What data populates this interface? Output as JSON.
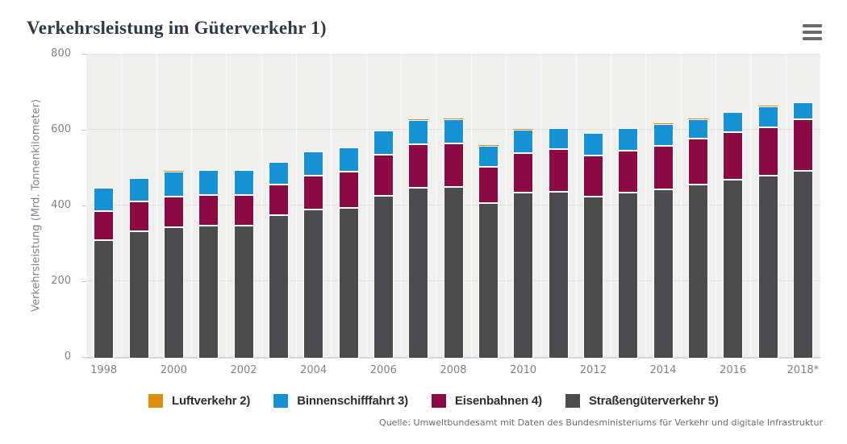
{
  "page": {
    "menu_icon": "hamburger-menu"
  },
  "colors": {
    "plot_background": "#f0f1ef",
    "gridline": "#e2e3e1",
    "baseline": "#c9d8e2",
    "axis_text": "#7e848c",
    "title_text": "#2e3a45",
    "legend_text": "#2d2d35",
    "source_text": "#6d6d6d",
    "menu_icon": "#6b6b6b"
  },
  "chart_data": {
    "type": "bar",
    "stacked": true,
    "title": "Verkehrsleistung im Güterverkehr 1)",
    "ylabel": "Verkehrsleistung (Mrd. Tonnenkilometer)",
    "xlabel": "",
    "ylim": [
      0,
      800
    ],
    "ytick_interval": 200,
    "yticks": [
      0,
      200,
      400,
      600,
      800
    ],
    "grid": "horizontal",
    "legend_position": "bottom",
    "xtick_every": 2,
    "categories": [
      "1998",
      "1999",
      "2000",
      "2001",
      "2002",
      "2003",
      "2004",
      "2005",
      "2006",
      "2007",
      "2008",
      "2009",
      "2010",
      "2011",
      "2012",
      "2013",
      "2014",
      "2015",
      "2016",
      "2017",
      "2018*"
    ],
    "series": [
      {
        "name": "Luftverkehr 2)",
        "slug": "luftverkehr",
        "color": "#dd8e0d",
        "values": [
          1,
          1,
          1,
          1,
          1,
          1,
          1,
          1,
          1,
          1,
          1,
          1,
          1,
          1,
          1,
          1,
          1,
          1,
          1,
          1,
          1
        ]
      },
      {
        "name": "Binnenschifffahrt 3)",
        "slug": "binnenschifffahrt",
        "color": "#1492d3",
        "values": [
          61,
          62,
          67,
          66,
          65,
          59,
          62,
          64,
          64,
          64,
          65,
          56,
          62,
          55,
          59,
          59,
          58,
          52,
          54,
          56,
          44
        ]
      },
      {
        "name": "Eisenbahnen 4)",
        "slug": "eisenbahnen",
        "color": "#8c0a44",
        "values": [
          77,
          77,
          80,
          79,
          80,
          82,
          90,
          96,
          108,
          115,
          115,
          96,
          104,
          112,
          109,
          111,
          116,
          121,
          125,
          128,
          136
        ]
      },
      {
        "name": "Straßengüterverkehr 5)",
        "slug": "strassengueterverkehr",
        "color": "#4c4c4e",
        "values": [
          313,
          337,
          347,
          352,
          352,
          378,
          394,
          397,
          430,
          451,
          453,
          410,
          439,
          441,
          427,
          438,
          446,
          460,
          472,
          483,
          496
        ]
      }
    ],
    "stack_order": "bottom-to-top: Straßengüterverkehr, Eisenbahnen, Binnenschifffahrt, Luftverkehr",
    "source": "Quelle: Umweltbundesamt mit Daten des Bundesministeriums für Verkehr und digitale Infrastruktur"
  }
}
